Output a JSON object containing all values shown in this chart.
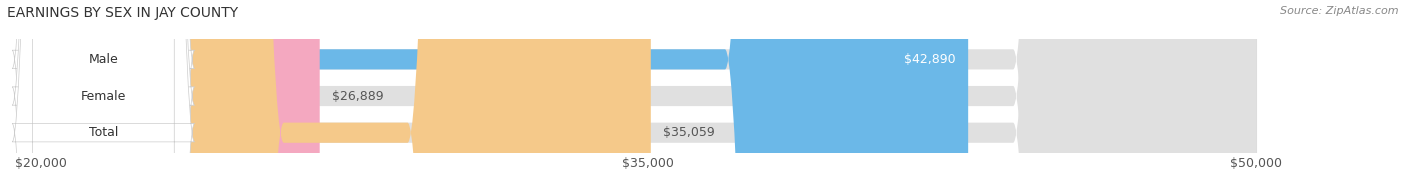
{
  "title": "EARNINGS BY SEX IN JAY COUNTY",
  "source": "Source: ZipAtlas.com",
  "categories": [
    "Male",
    "Female",
    "Total"
  ],
  "values": [
    42890,
    26889,
    35059
  ],
  "x_min": 20000,
  "x_max": 50000,
  "x_ticks": [
    20000,
    35000,
    50000
  ],
  "x_tick_labels": [
    "$20,000",
    "$35,000",
    "$50,000"
  ],
  "bar_colors": [
    "#6bb8e8",
    "#f4a8c0",
    "#f5c98a"
  ],
  "value_label_colors": [
    "#ffffff",
    "#555555",
    "#555555"
  ],
  "bar_height": 0.55,
  "label_fontsize": 9,
  "title_fontsize": 10,
  "source_fontsize": 8,
  "background_color": "#ffffff",
  "bar_bg_color": "#e0e0e0"
}
